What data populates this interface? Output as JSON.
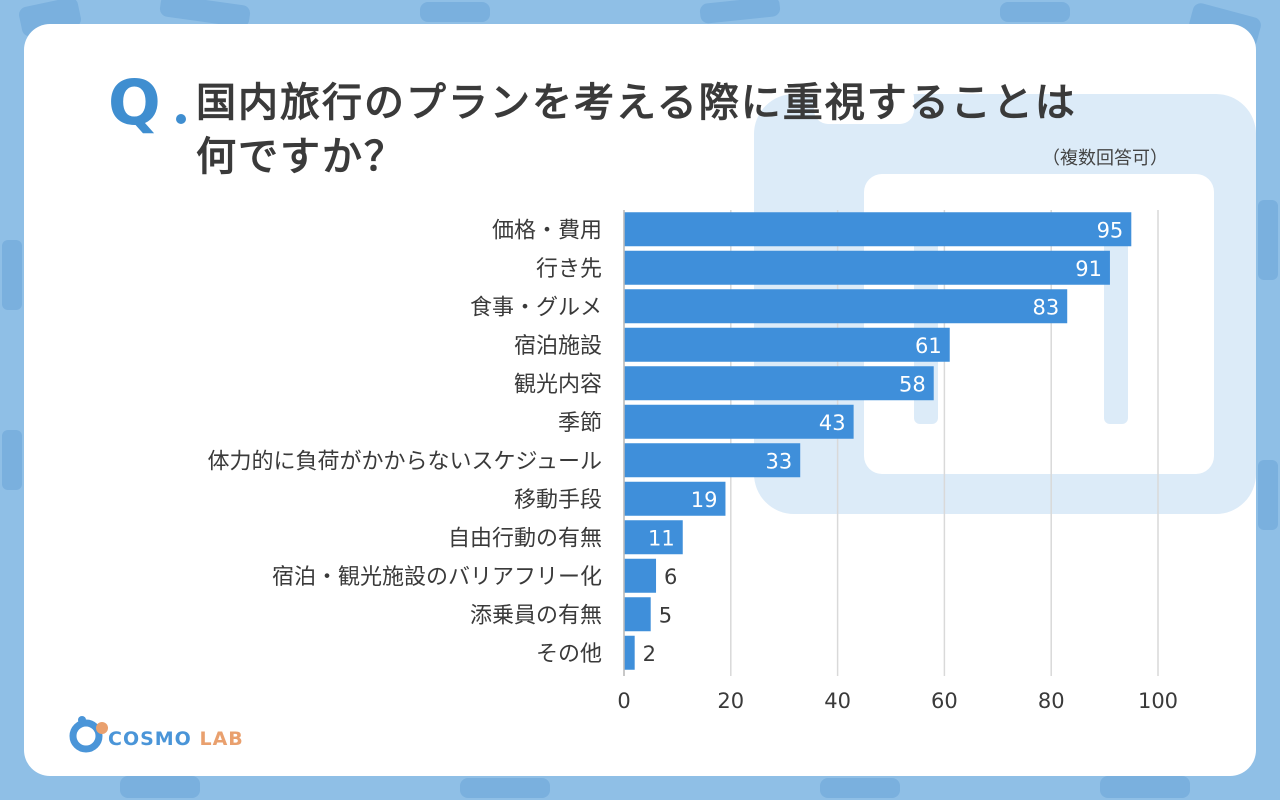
{
  "question": {
    "mark": "Q",
    "line1": "国内旅行のプランを考える際に重視することは",
    "line2": "何ですか？",
    "note": "（複数回答可）"
  },
  "logo": {
    "part1": "COSMO",
    "part2": "LAB"
  },
  "colors": {
    "bar": "#3f8fda",
    "accent": "#3f8ed0",
    "background": "#8fbfe6",
    "grid": "#d9d9d9"
  },
  "chart_data": {
    "type": "bar",
    "orientation": "horizontal",
    "title": "国内旅行のプランを考える際に重視することは何ですか？",
    "categories": [
      "価格・費用",
      "行き先",
      "食事・グルメ",
      "宿泊施設",
      "観光内容",
      "季節",
      "体力的に負荷がかからないスケジュール",
      "移動手段",
      "自由行動の有無",
      "宿泊・観光施設のバリアフリー化",
      "添乗員の有無",
      "その他"
    ],
    "values": [
      95,
      91,
      83,
      61,
      58,
      43,
      33,
      19,
      11,
      6,
      5,
      2
    ],
    "xlim": [
      0,
      100
    ],
    "xticks": [
      0,
      20,
      40,
      60,
      80,
      100
    ],
    "grid": true,
    "xlabel": "",
    "ylabel": ""
  }
}
